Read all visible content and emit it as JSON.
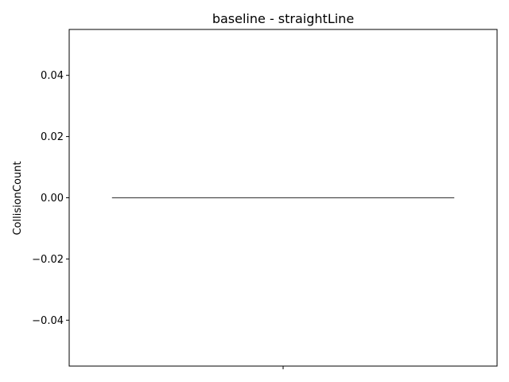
{
  "chart_data": {
    "type": "box",
    "title": "baseline - straightLine",
    "xlabel": "",
    "ylabel": "CollisionCount",
    "ylim": [
      -0.055,
      0.055
    ],
    "yticks": [
      -0.04,
      -0.02,
      0.0,
      0.02,
      0.04
    ],
    "ytick_labels": [
      "−0.04",
      "−0.02",
      "0.00",
      "0.02",
      "0.04"
    ],
    "categories": [
      ""
    ],
    "series": [
      {
        "values": [
          0,
          0,
          0,
          0,
          0
        ],
        "min": 0,
        "q1": 0,
        "median": 0,
        "q3": 0,
        "max": 0
      }
    ],
    "grid": false,
    "colors": {
      "line": "#4d4d4d",
      "axes": "#000000"
    }
  }
}
